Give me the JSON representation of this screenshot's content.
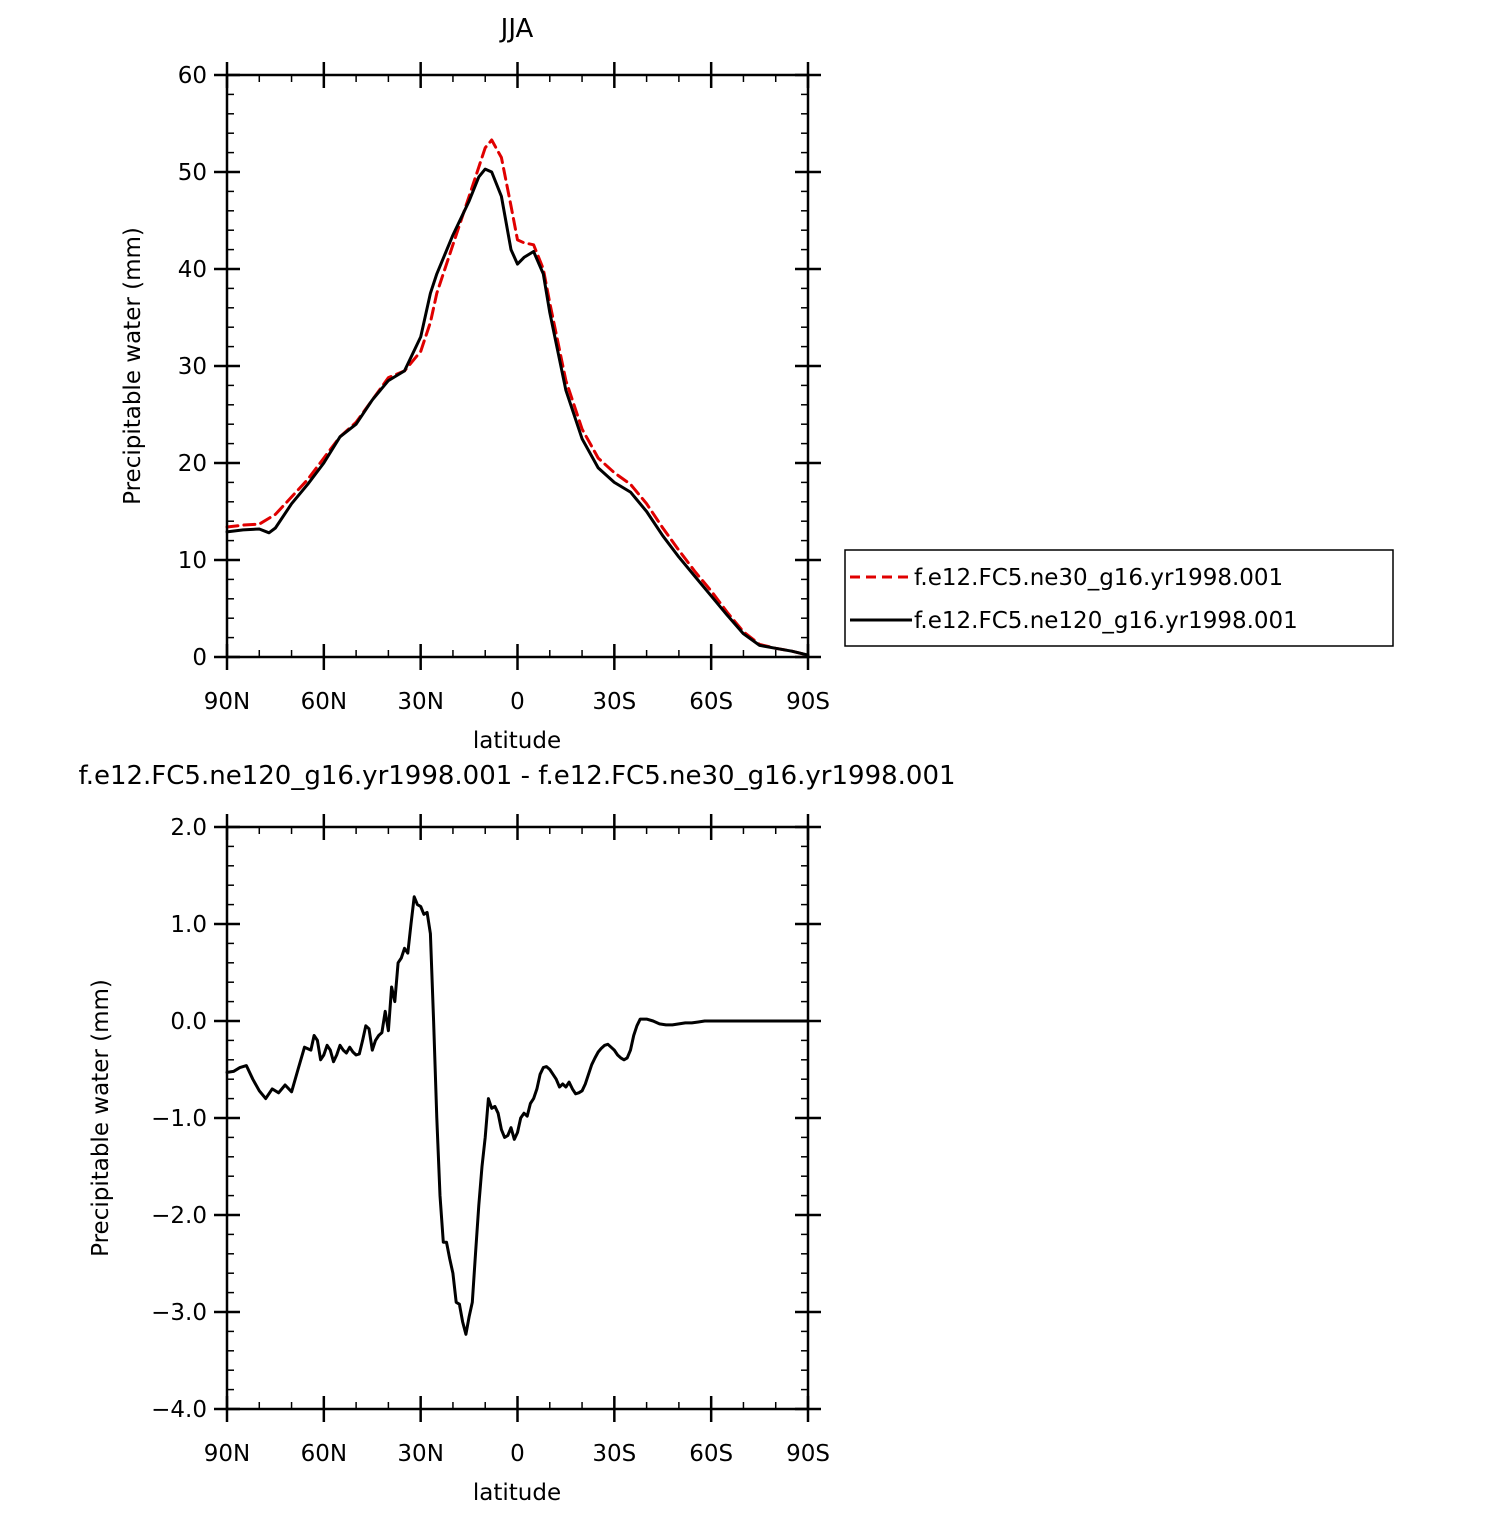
{
  "chart_data": [
    {
      "type": "line",
      "title": "JJA",
      "xlabel": "latitude",
      "ylabel": "Precipitable water (mm)",
      "xlim": [
        90,
        -90
      ],
      "ylim": [
        0,
        60
      ],
      "xticks": [
        90,
        60,
        30,
        0,
        -30,
        -60,
        -90
      ],
      "xtick_labels": [
        "90N",
        "60N",
        "30N",
        "0",
        "30S",
        "60S",
        "90S"
      ],
      "yticks": [
        0,
        10,
        20,
        30,
        40,
        50,
        60
      ],
      "ytick_labels": [
        "0",
        "10",
        "20",
        "30",
        "40",
        "50",
        "60"
      ],
      "legend_position": "right",
      "series": [
        {
          "name": "f.e12.FC5.ne30_g16.yr1998.001",
          "color": "#e00000",
          "dash": "dashed",
          "x": [
            90,
            85,
            80,
            75,
            70,
            65,
            60,
            55,
            50,
            45,
            40,
            35,
            30,
            27,
            25,
            20,
            15,
            12,
            10,
            8,
            5,
            2,
            0,
            -2,
            -5,
            -8,
            -10,
            -15,
            -20,
            -25,
            -30,
            -35,
            -40,
            -45,
            -50,
            -55,
            -60,
            -65,
            -70,
            -75,
            -80,
            -85,
            -90
          ],
          "y": [
            13.4,
            13.6,
            13.7,
            14.7,
            16.5,
            18.3,
            20.5,
            22.7,
            24.2,
            26.5,
            28.8,
            29.5,
            31.5,
            34.5,
            37.5,
            42.5,
            47.5,
            50.5,
            52.5,
            53.3,
            51.5,
            46.5,
            43.0,
            42.7,
            42.5,
            40.0,
            36.5,
            28.5,
            23.5,
            20.5,
            19.0,
            17.8,
            15.8,
            13.3,
            11.0,
            8.8,
            6.8,
            4.6,
            2.6,
            1.3,
            0.9,
            0.6,
            0.2
          ]
        },
        {
          "name": "f.e12.FC5.ne120_g16.yr1998.001",
          "color": "#000000",
          "dash": "solid",
          "x": [
            90,
            85,
            80,
            77,
            75,
            70,
            65,
            60,
            55,
            50,
            45,
            40,
            35,
            30,
            27,
            25,
            20,
            15,
            12,
            10,
            8,
            5,
            2,
            0,
            -2,
            -5,
            -8,
            -10,
            -15,
            -20,
            -25,
            -30,
            -35,
            -40,
            -45,
            -50,
            -55,
            -60,
            -65,
            -70,
            -75,
            -80,
            -85,
            -90
          ],
          "y": [
            12.9,
            13.1,
            13.2,
            12.8,
            13.3,
            15.8,
            17.8,
            20.0,
            22.7,
            24.0,
            26.5,
            28.5,
            29.5,
            33.0,
            37.5,
            39.5,
            43.5,
            47.0,
            49.5,
            50.3,
            50.0,
            47.5,
            42.0,
            40.5,
            41.2,
            41.8,
            39.5,
            35.5,
            27.5,
            22.5,
            19.5,
            18.0,
            17.0,
            15.0,
            12.5,
            10.3,
            8.3,
            6.3,
            4.3,
            2.4,
            1.2,
            0.9,
            0.6,
            0.2
          ]
        }
      ]
    },
    {
      "type": "line",
      "title": "f.e12.FC5.ne120_g16.yr1998.001 - f.e12.FC5.ne30_g16.yr1998.001",
      "xlabel": "latitude",
      "ylabel": "Precipitable water (mm)",
      "xlim": [
        90,
        -90
      ],
      "ylim": [
        -4.0,
        2.0
      ],
      "xticks": [
        90,
        60,
        30,
        0,
        -30,
        -60,
        -90
      ],
      "xtick_labels": [
        "90N",
        "60N",
        "30N",
        "0",
        "30S",
        "60S",
        "90S"
      ],
      "yticks": [
        2.0,
        1.0,
        0.0,
        -1.0,
        -2.0,
        -3.0,
        -4.0
      ],
      "ytick_labels": [
        "2.0",
        "1.0",
        "0.0",
        "−1.0",
        "−2.0",
        "−3.0",
        "−4.0"
      ],
      "series": [
        {
          "color": "#000000",
          "dash": "solid",
          "x": [
            90,
            88,
            86,
            84,
            82,
            80,
            78,
            76,
            74,
            72,
            70,
            68,
            66,
            64,
            63,
            62,
            61,
            60,
            59,
            58,
            57,
            56,
            55,
            54,
            53,
            52,
            51,
            50,
            49,
            48,
            47,
            46,
            45,
            44,
            43,
            42,
            41,
            40,
            39,
            38,
            37,
            36,
            35,
            34,
            33,
            32,
            31,
            30,
            29,
            28,
            27,
            26,
            25,
            24,
            23,
            22,
            21,
            20,
            19,
            18,
            17,
            16,
            15,
            14,
            13,
            12,
            11,
            10,
            9,
            8,
            7,
            6,
            5,
            4,
            3,
            2,
            1,
            0,
            -1,
            -2,
            -3,
            -4,
            -5,
            -6,
            -7,
            -8,
            -9,
            -10,
            -11,
            -12,
            -13,
            -14,
            -15,
            -16,
            -17,
            -18,
            -19,
            -20,
            -21,
            -22,
            -23,
            -24,
            -25,
            -26,
            -27,
            -28,
            -29,
            -30,
            -31,
            -32,
            -33,
            -34,
            -35,
            -36,
            -37,
            -38,
            -40,
            -42,
            -44,
            -46,
            -48,
            -50,
            -52,
            -54,
            -56,
            -58,
            -60,
            -62,
            -64,
            -66,
            -68,
            -70,
            -72,
            -74,
            -76,
            -78,
            -80,
            -82,
            -84,
            -86,
            -88,
            -90
          ],
          "y": [
            -0.53,
            -0.52,
            -0.48,
            -0.46,
            -0.6,
            -0.72,
            -0.8,
            -0.7,
            -0.74,
            -0.66,
            -0.73,
            -0.5,
            -0.27,
            -0.3,
            -0.15,
            -0.2,
            -0.4,
            -0.35,
            -0.25,
            -0.3,
            -0.42,
            -0.35,
            -0.25,
            -0.3,
            -0.33,
            -0.27,
            -0.32,
            -0.35,
            -0.34,
            -0.2,
            -0.05,
            -0.08,
            -0.3,
            -0.2,
            -0.15,
            -0.12,
            0.1,
            -0.1,
            0.35,
            0.2,
            0.6,
            0.65,
            0.75,
            0.7,
            1.0,
            1.28,
            1.2,
            1.18,
            1.1,
            1.12,
            0.9,
            0.0,
            -1.0,
            -1.8,
            -2.28,
            -2.28,
            -2.45,
            -2.6,
            -2.9,
            -2.92,
            -3.1,
            -3.23,
            -3.05,
            -2.9,
            -2.4,
            -1.9,
            -1.5,
            -1.2,
            -0.8,
            -0.9,
            -0.88,
            -0.95,
            -1.12,
            -1.2,
            -1.18,
            -1.1,
            -1.22,
            -1.15,
            -1.0,
            -0.95,
            -0.98,
            -0.85,
            -0.8,
            -0.7,
            -0.55,
            -0.48,
            -0.47,
            -0.5,
            -0.55,
            -0.6,
            -0.68,
            -0.65,
            -0.68,
            -0.63,
            -0.7,
            -0.75,
            -0.74,
            -0.72,
            -0.65,
            -0.55,
            -0.45,
            -0.38,
            -0.32,
            -0.28,
            -0.25,
            -0.24,
            -0.27,
            -0.3,
            -0.35,
            -0.38,
            -0.4,
            -0.38,
            -0.3,
            -0.15,
            -0.05,
            0.02,
            0.02,
            0.0,
            -0.03,
            -0.04,
            -0.04,
            -0.03,
            -0.02,
            -0.02,
            -0.01,
            0.0,
            0.0,
            0.0,
            0.0,
            0.0,
            0.0,
            0.0,
            0.0,
            0.0,
            0.0,
            0.0,
            0.0,
            0.0,
            0.0,
            0.0,
            0.0,
            0.0
          ]
        }
      ]
    }
  ]
}
